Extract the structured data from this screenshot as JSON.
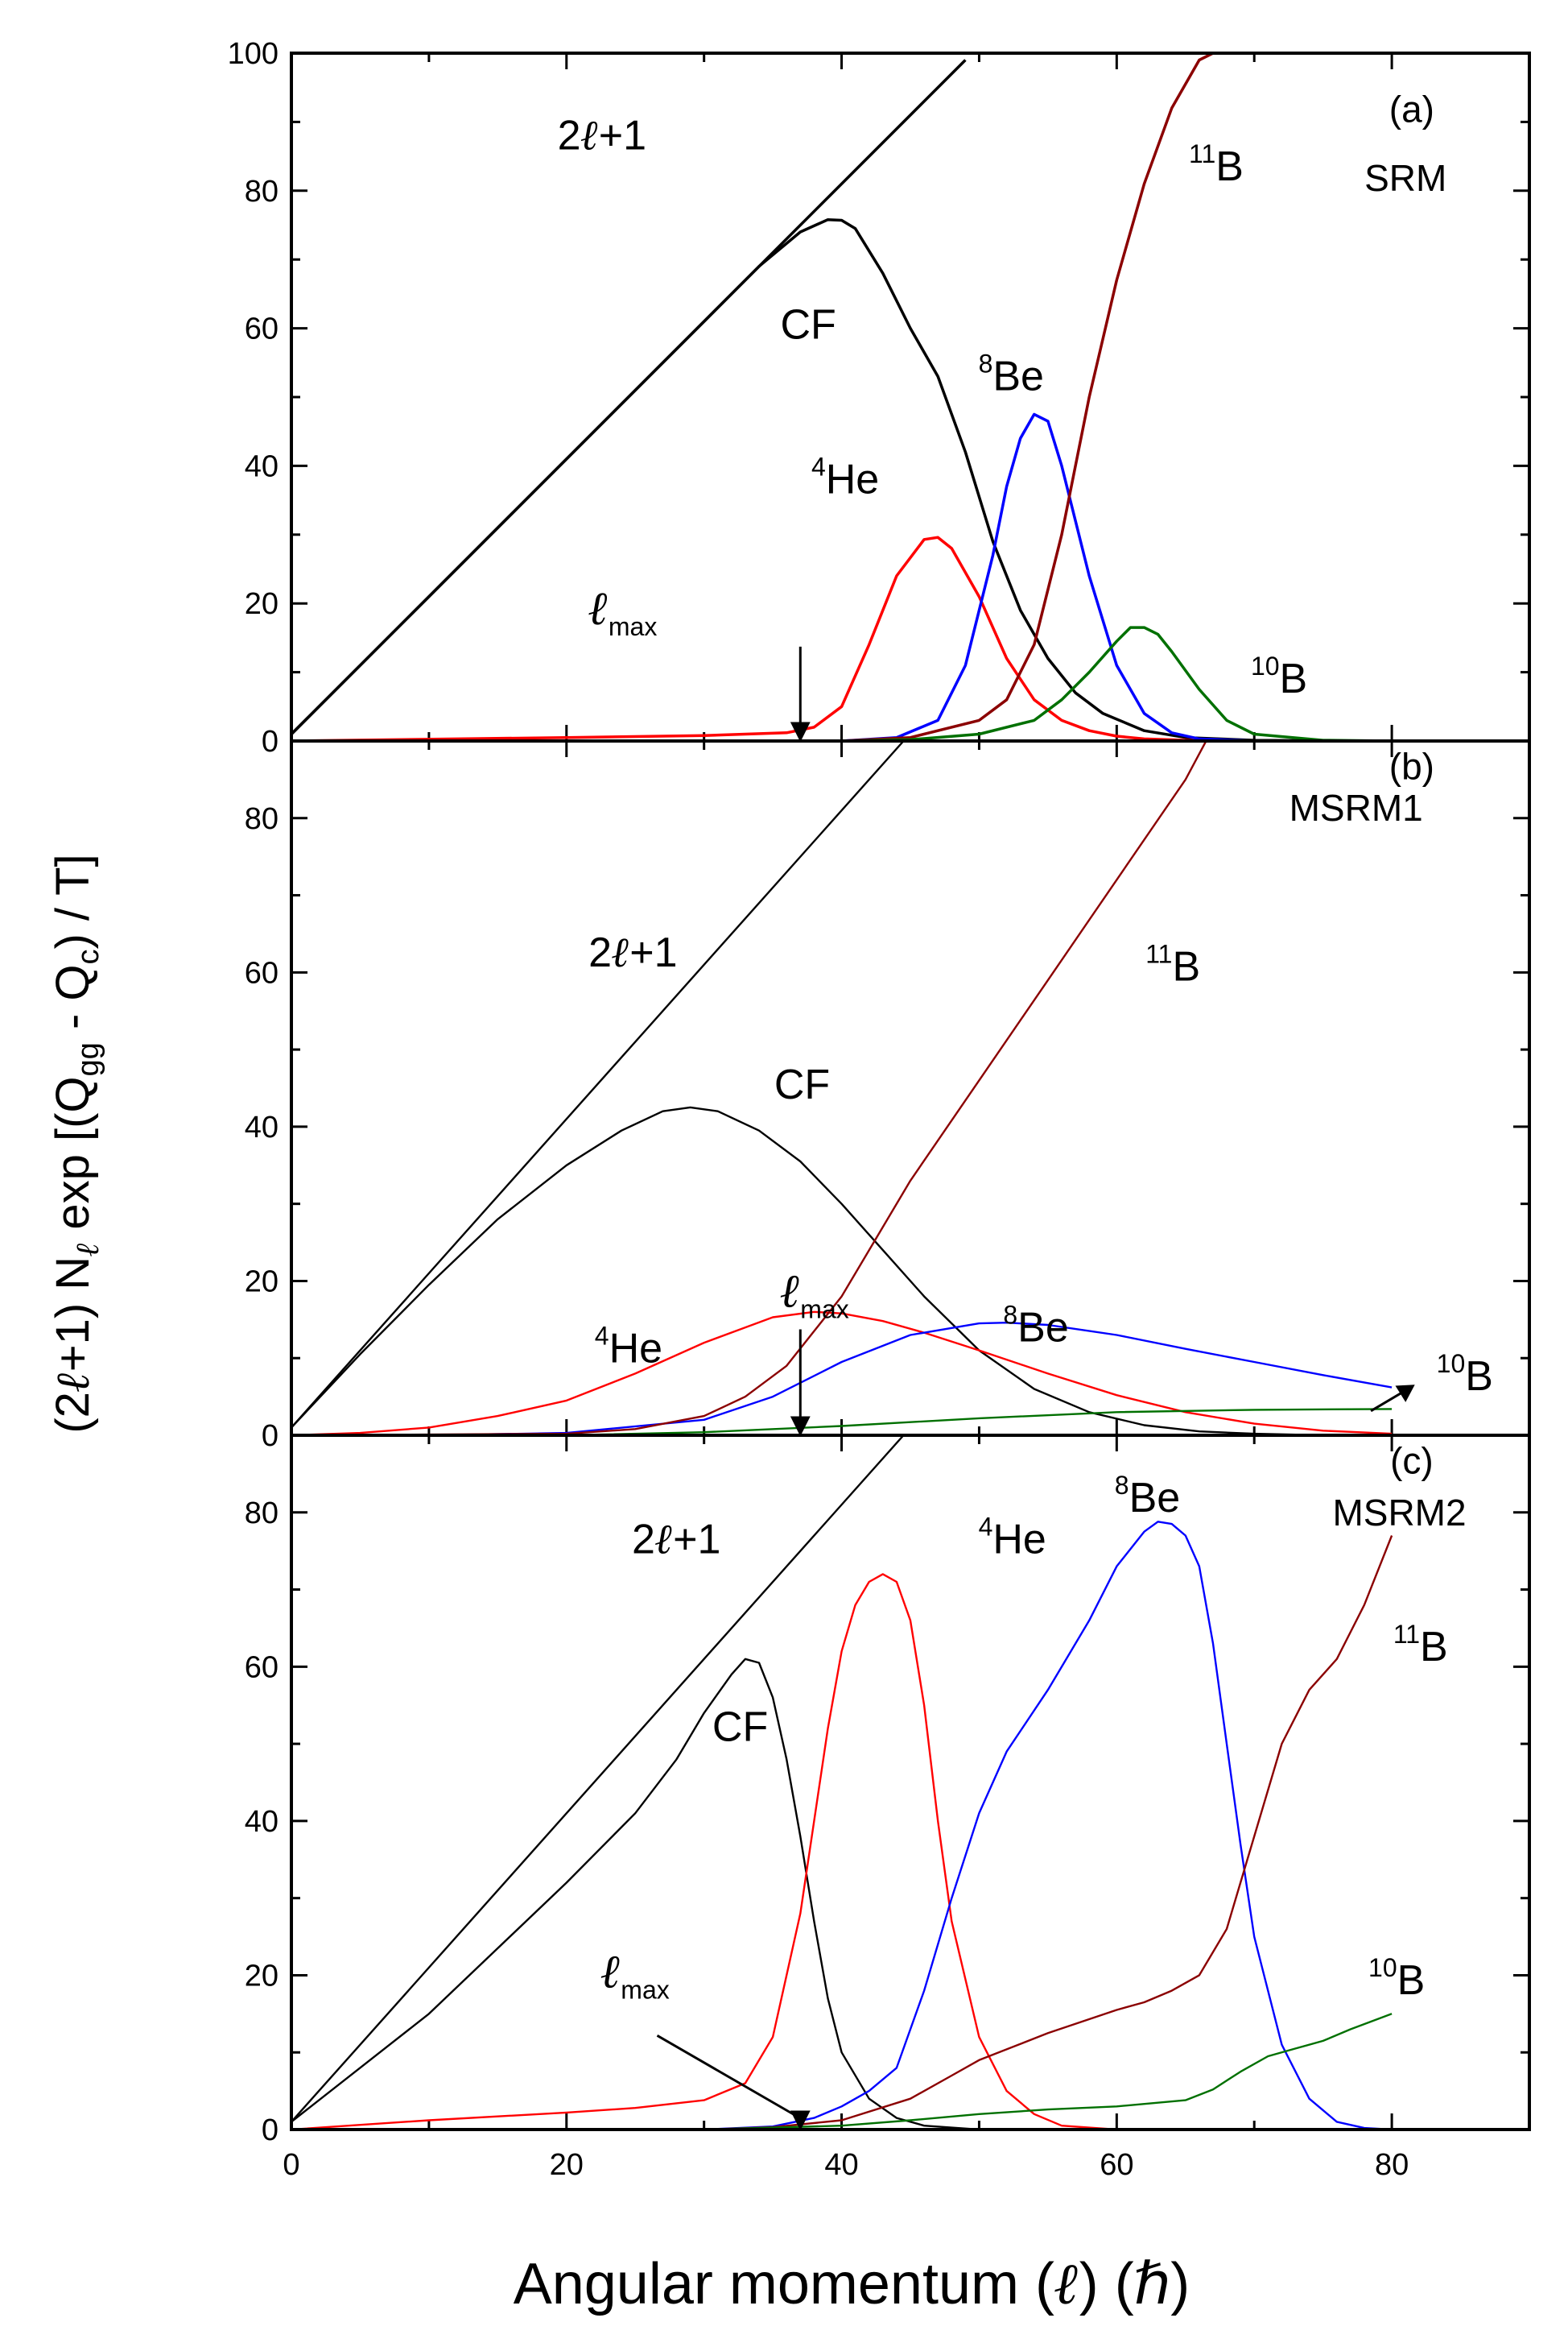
{
  "chart_data": {
    "type": "line",
    "xlabel": "Angular momentum (ℓ) (ℏ)",
    "ylabel": "(2ℓ+1) Nℓ exp [(Qgg - Qc) / T]",
    "ylabel_parts": {
      "prefix": "(2",
      "ell": "ℓ",
      "mid1": "+1) N",
      "mid2": " exp [(Q",
      "sub1": "gg",
      "mid3": " - Q",
      "sub2": "c",
      "suffix": ") / T]"
    },
    "xlabel_parts": {
      "prefix": "Angular momentum (",
      "ell": "ℓ",
      "suffix": ") (ℏ)"
    },
    "xlim": [
      0,
      90
    ],
    "xticks": [
      0,
      20,
      40,
      60,
      80
    ],
    "colors": {
      "black": "#000000",
      "red": "#ff0000",
      "blue": "#0000ff",
      "brown": "#8b0000",
      "green": "#007000"
    },
    "panels": [
      {
        "letter": "(a)",
        "model": "SRM",
        "ylim": [
          0,
          100
        ],
        "yticks": [
          0,
          20,
          40,
          60,
          80,
          100
        ],
        "lmax": 37,
        "annotations": [
          {
            "key": "line",
            "pre": "2",
            "ell": "ℓ",
            "post": "+1",
            "sup": ""
          },
          {
            "key": "cf",
            "pre": "CF",
            "sup": ""
          },
          {
            "key": "be8",
            "pre": "Be",
            "sup": "8"
          },
          {
            "key": "he4",
            "pre": "He",
            "sup": "4"
          },
          {
            "key": "b11",
            "pre": "B",
            "sup": "11"
          },
          {
            "key": "b10",
            "pre": "B",
            "sup": "10"
          },
          {
            "key": "lmax",
            "ell": "ℓ",
            "sub": "max"
          }
        ],
        "series": [
          {
            "name": "2ℓ+1",
            "color": "black",
            "x": [
              0,
              49
            ],
            "y": [
              1,
              99
            ]
          },
          {
            "name": "CF",
            "color": "black",
            "x": [
              0,
              10,
              20,
              30,
              34,
              37,
              39,
              40,
              41,
              43,
              45,
              47,
              49,
              51,
              53,
              55,
              57,
              59,
              62,
              65,
              70,
              80,
              90
            ],
            "y": [
              1,
              21,
              41,
              61,
              69,
              74,
              75.8,
              75.7,
              74.5,
              68,
              60,
              53,
              42,
              29,
              19,
              12,
              7,
              4,
              1.5,
              0.5,
              0.1,
              0,
              0
            ]
          },
          {
            "name": "4He",
            "color": "red",
            "x": [
              0,
              20,
              30,
              36,
              38,
              40,
              42,
              44,
              46,
              47,
              48,
              50,
              52,
              54,
              56,
              58,
              60,
              62,
              66,
              70,
              80,
              90
            ],
            "y": [
              0,
              0.5,
              0.8,
              1.2,
              2,
              5,
              14,
              24,
              29.3,
              29.6,
              28,
              21,
              12,
              6,
              3,
              1.5,
              0.7,
              0.3,
              0.05,
              0,
              0,
              0
            ]
          },
          {
            "name": "8Be",
            "color": "blue",
            "x": [
              0,
              40,
              44,
              47,
              49,
              51,
              52,
              53,
              54,
              55,
              56,
              57,
              58,
              60,
              62,
              64,
              66,
              70,
              80,
              90
            ],
            "y": [
              0,
              0,
              0.5,
              3,
              11,
              27,
              37,
              44,
              47.5,
              46.5,
              40,
              32,
              24,
              11,
              4,
              1.2,
              0.3,
              0,
              0,
              0
            ]
          },
          {
            "name": "11B",
            "color": "brown",
            "x": [
              0,
              40,
              45,
              50,
              52,
              54,
              56,
              58,
              60,
              62,
              64,
              66,
              67
            ],
            "y": [
              0,
              0,
              0.5,
              3,
              6,
              14,
              30,
              50,
              67,
              81,
              92,
              99,
              100
            ]
          },
          {
            "name": "10B",
            "color": "green",
            "x": [
              0,
              40,
              45,
              50,
              54,
              56,
              58,
              60,
              61,
              62,
              63,
              64,
              66,
              68,
              70,
              75,
              80,
              90
            ],
            "y": [
              0,
              0,
              0.2,
              1,
              3,
              6,
              10,
              14.5,
              16.5,
              16.5,
              15.5,
              13,
              7.5,
              3,
              1,
              0.1,
              0,
              0
            ]
          }
        ]
      },
      {
        "letter": "(b)",
        "model": "MSRM1",
        "ylim": [
          0,
          90
        ],
        "yticks": [
          0,
          20,
          40,
          60,
          80
        ],
        "lmax": 37,
        "annotations": [
          {
            "key": "line",
            "pre": "2",
            "ell": "ℓ",
            "post": "+1",
            "sup": ""
          },
          {
            "key": "cf",
            "pre": "CF",
            "sup": ""
          },
          {
            "key": "b11",
            "pre": "B",
            "sup": "11"
          },
          {
            "key": "he4",
            "pre": "He",
            "sup": "4"
          },
          {
            "key": "be8",
            "pre": "Be",
            "sup": "8"
          },
          {
            "key": "b10",
            "pre": "B",
            "sup": "10"
          },
          {
            "key": "lmax",
            "ell": "ℓ",
            "sub": "max"
          }
        ],
        "series": [
          {
            "name": "2ℓ+1",
            "color": "black",
            "x": [
              0,
              44.5
            ],
            "y": [
              1,
              90
            ]
          },
          {
            "name": "CF",
            "color": "black",
            "x": [
              0,
              5,
              10,
              15,
              20,
              24,
              27,
              29,
              31,
              34,
              37,
              40,
              43,
              46,
              50,
              54,
              58,
              62,
              66,
              70,
              75,
              80
            ],
            "y": [
              1,
              10.5,
              19.5,
              28,
              35,
              39.5,
              42,
              42.5,
              42,
              39.5,
              35.5,
              30,
              24,
              18,
              11,
              6,
              3,
              1.3,
              0.5,
              0.2,
              0,
              0
            ]
          },
          {
            "name": "4He",
            "color": "red",
            "x": [
              0,
              5,
              10,
              15,
              20,
              25,
              30,
              35,
              38,
              40,
              43,
              46,
              50,
              55,
              60,
              65,
              70,
              75,
              80
            ],
            "y": [
              0,
              0.3,
              1,
              2.5,
              4.5,
              8,
              12,
              15.3,
              16,
              15.8,
              14.8,
              13.3,
              11,
              8,
              5.2,
              3,
              1.5,
              0.6,
              0.2
            ]
          },
          {
            "name": "8Be",
            "color": "blue",
            "x": [
              0,
              10,
              20,
              30,
              35,
              40,
              45,
              50,
              52,
              55,
              60,
              65,
              70,
              75,
              80
            ],
            "y": [
              0,
              0,
              0.3,
              2,
              5,
              9.5,
              13,
              14.5,
              14.6,
              14.3,
              13,
              11.2,
              9.5,
              7.8,
              6.2
            ]
          },
          {
            "name": "11B",
            "color": "brown",
            "x": [
              0,
              20,
              25,
              30,
              33,
              36,
              40,
              45,
              50,
              55,
              60,
              65,
              66.5
            ],
            "y": [
              0,
              0.2,
              0.8,
              2.5,
              5,
              9,
              18,
              33,
              46,
              59,
              72,
              85,
              90
            ]
          },
          {
            "name": "10B",
            "color": "green",
            "x": [
              0,
              20,
              30,
              40,
              50,
              60,
              70,
              80
            ],
            "y": [
              0,
              0,
              0.4,
              1.2,
              2.2,
              3,
              3.3,
              3.4
            ]
          }
        ]
      },
      {
        "letter": "(c)",
        "model": "MSRM2",
        "ylim": [
          0,
          90
        ],
        "yticks": [
          0,
          20,
          40,
          60,
          80
        ],
        "lmax": 37,
        "annotations": [
          {
            "key": "line",
            "pre": "2",
            "ell": "ℓ",
            "post": "+1",
            "sup": ""
          },
          {
            "key": "he4",
            "pre": "He",
            "sup": "4"
          },
          {
            "key": "be8",
            "pre": "Be",
            "sup": "8"
          },
          {
            "key": "cf",
            "pre": "CF",
            "sup": ""
          },
          {
            "key": "b11",
            "pre": "B",
            "sup": "11"
          },
          {
            "key": "b10",
            "pre": "B",
            "sup": "10"
          },
          {
            "key": "lmax",
            "ell": "ℓ",
            "sub": "max"
          }
        ],
        "series": [
          {
            "name": "2ℓ+1",
            "color": "black",
            "x": [
              0,
              44.5
            ],
            "y": [
              1,
              90
            ]
          },
          {
            "name": "CF",
            "color": "black",
            "x": [
              0,
              10,
              20,
              25,
              28,
              30,
              32,
              33,
              34,
              35,
              36,
              37,
              38,
              39,
              40,
              42,
              44,
              46,
              50,
              60
            ],
            "y": [
              1,
              15,
              32,
              41,
              48,
              54,
              59,
              61,
              60.5,
              56,
              48,
              38,
              27,
              17,
              10,
              4,
              1.5,
              0.5,
              0,
              0
            ]
          },
          {
            "name": "4He",
            "color": "red",
            "x": [
              0,
              10,
              20,
              25,
              30,
              33,
              35,
              37,
              38,
              39,
              40,
              41,
              42,
              43,
              44,
              45,
              46,
              47,
              48,
              50,
              52,
              54,
              56,
              60,
              70
            ],
            "y": [
              0,
              1.2,
              2.2,
              2.8,
              3.8,
              6,
              12,
              28,
              40,
              52,
              62,
              68,
              71,
              72,
              71,
              66,
              55,
              40,
              27,
              12,
              5,
              2,
              0.5,
              0,
              0
            ]
          },
          {
            "name": "8Be",
            "color": "blue",
            "x": [
              0,
              30,
              35,
              38,
              40,
              42,
              44,
              46,
              48,
              50,
              52,
              55,
              58,
              60,
              62,
              63,
              64,
              65,
              66,
              67,
              68,
              69,
              70,
              72,
              74,
              76,
              78,
              80
            ],
            "y": [
              0,
              0,
              0.4,
              1.5,
              3,
              5,
              8,
              18,
              30,
              41,
              49,
              57,
              66,
              73,
              77.5,
              78.8,
              78.5,
              77,
              73,
              63,
              50,
              37,
              25,
              11,
              4,
              1,
              0.2,
              0
            ]
          },
          {
            "name": "11B",
            "color": "brown",
            "x": [
              0,
              30,
              35,
              40,
              45,
              48,
              50,
              55,
              60,
              62,
              64,
              66,
              68,
              70,
              72,
              74,
              76,
              78,
              80
            ],
            "y": [
              0,
              0,
              0.3,
              1.2,
              4,
              7,
              9,
              12.5,
              15.5,
              16.5,
              18,
              20,
              26,
              38,
              50,
              57,
              61,
              68,
              77
            ]
          },
          {
            "name": "10B",
            "color": "green",
            "x": [
              0,
              30,
              40,
              45,
              50,
              55,
              60,
              65,
              67,
              69,
              71,
              73,
              75,
              77,
              80
            ],
            "y": [
              0,
              0,
              0.5,
              1.2,
              2,
              2.6,
              3,
              3.8,
              5.2,
              7.5,
              9.5,
              10.5,
              11.5,
              13,
              15
            ]
          }
        ]
      }
    ]
  }
}
